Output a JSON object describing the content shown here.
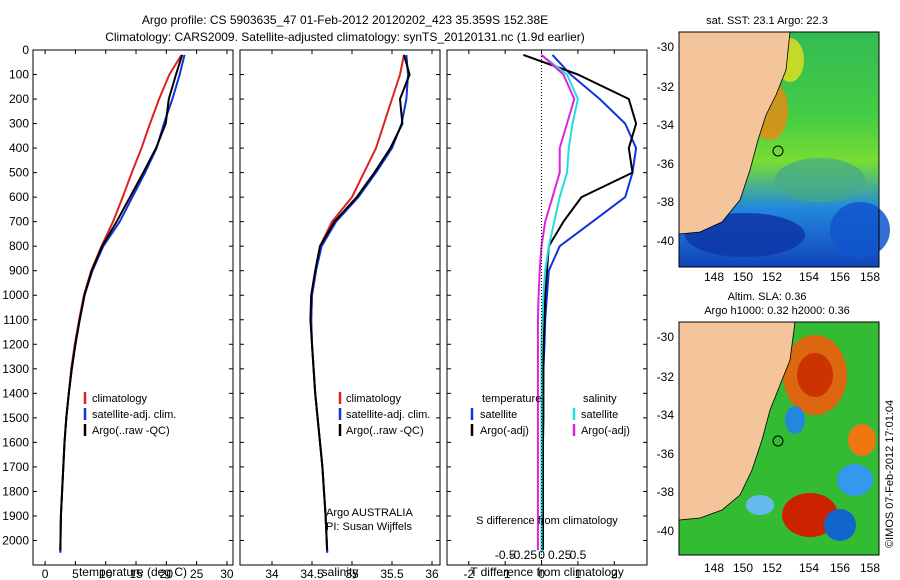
{
  "header": {
    "title_line1": "Argo profile: CS 5903635_47 01-Feb-2012 20120202_423 35.359S 152.38E",
    "title_line2": "Climatology: CARS2009. Satellite-adjusted climatology: synTS_20120131.nc (1.9d earlier)"
  },
  "panels": {
    "temperature": {
      "xlabel": "temperature (deg C)",
      "legend": [
        "climatology",
        "satellite-adj. clim.",
        "Argo(..raw -QC)"
      ]
    },
    "salinity": {
      "xlabel": "salinity",
      "legend": [
        "climatology",
        "satellite-adj. clim.",
        "Argo(..raw -QC)"
      ],
      "credit_line1": "Argo AUSTRALIA",
      "credit_line2": "PI: Susan Wijffels"
    },
    "difference": {
      "xlabel": "T difference from climatology",
      "top_xlabel": "S difference from climatology",
      "legend_temp_title": "temperature",
      "legend_temp": [
        "satellite",
        "Argo(-adj)"
      ],
      "legend_sal_title": "salinity",
      "legend_sal": [
        "satellite",
        "Argo(-adj)"
      ]
    }
  },
  "maps": {
    "sst_title": "sat. SST: 23.1  Argo: 22.3",
    "sla_title_line1": "Altim. SLA: 0.36",
    "sla_title_line2": "Argo h1000: 0.32  h2000: 0.36",
    "lat_ticks": [
      "-30",
      "-32",
      "-34",
      "-36",
      "-38",
      "-40"
    ],
    "lon_ticks": [
      "148",
      "150",
      "152",
      "154",
      "156",
      "158"
    ]
  },
  "footer": {
    "imos_stamp": "©IMOS 07-Feb-2012 17:01:04"
  },
  "colors": {
    "climatology": "#dd2222",
    "satellite": "#1133dd",
    "argo": "#000000",
    "sal_satellite": "#22dddd",
    "sal_argo": "#dd22dd",
    "land": "#f4c49a"
  },
  "chart_data": [
    {
      "type": "line",
      "title": "",
      "xlabel": "temperature (deg C)",
      "ylabel": "",
      "xlim": [
        -2,
        31
      ],
      "ylim": [
        2100,
        0
      ],
      "xticks": [
        0,
        5,
        10,
        15,
        20,
        25,
        30
      ],
      "yticks": [
        0,
        100,
        200,
        300,
        400,
        500,
        600,
        700,
        800,
        900,
        1000,
        1100,
        1200,
        1300,
        1400,
        1500,
        1600,
        1700,
        1800,
        1900,
        2000
      ],
      "series": [
        {
          "name": "climatology",
          "x": [
            22.5,
            20.5,
            18.8,
            17.3,
            15.9,
            14.3,
            12.8,
            11.2,
            9.3,
            7.6,
            6.4,
            5.6,
            4.9,
            4.3,
            3.9,
            3.5,
            3.2,
            3.0,
            2.8,
            2.6,
            2.5
          ],
          "y": [
            20,
            100,
            200,
            300,
            400,
            500,
            600,
            700,
            800,
            900,
            1000,
            1100,
            1200,
            1300,
            1400,
            1500,
            1600,
            1700,
            1800,
            1900,
            2050
          ]
        },
        {
          "name": "satellite-adj. clim.",
          "x": [
            23.0,
            22.2,
            21.0,
            19.6,
            18.4,
            16.5,
            14.4,
            12.3,
            9.6,
            7.8,
            6.5,
            5.7,
            5.0,
            4.4,
            3.9,
            3.5,
            3.2,
            3.0,
            2.8,
            2.6,
            2.5
          ],
          "y": [
            20,
            100,
            200,
            300,
            400,
            500,
            600,
            700,
            800,
            900,
            1000,
            1100,
            1200,
            1300,
            1400,
            1500,
            1600,
            1700,
            1800,
            1900,
            2050
          ]
        },
        {
          "name": "Argo(..raw -QC)",
          "x": [
            22.6,
            21.6,
            20.4,
            19.9,
            18.3,
            16.2,
            14.0,
            11.8,
            9.4,
            7.7,
            6.5,
            5.7,
            5.0,
            4.4,
            3.9,
            3.5,
            3.2,
            3.0,
            2.8,
            2.6,
            2.5
          ],
          "y": [
            20,
            100,
            200,
            300,
            400,
            500,
            600,
            700,
            800,
            900,
            1000,
            1100,
            1200,
            1300,
            1400,
            1500,
            1600,
            1700,
            1800,
            1900,
            2040
          ]
        }
      ]
    },
    {
      "type": "line",
      "title": "",
      "xlabel": "salinity",
      "ylabel": "",
      "xlim": [
        33.6,
        36.1
      ],
      "ylim": [
        2100,
        0
      ],
      "xticks": [
        34,
        34.5,
        35,
        35.5,
        36
      ],
      "series": [
        {
          "name": "climatology",
          "x": [
            35.65,
            35.6,
            35.5,
            35.4,
            35.3,
            35.15,
            35.0,
            34.75,
            34.6,
            34.55,
            34.5,
            34.49,
            34.5,
            34.52,
            34.54,
            34.57,
            34.6,
            34.63,
            34.65,
            34.67,
            34.69
          ],
          "y": [
            20,
            100,
            200,
            300,
            400,
            500,
            600,
            700,
            800,
            900,
            1000,
            1100,
            1200,
            1300,
            1400,
            1500,
            1600,
            1700,
            1800,
            1900,
            2050
          ]
        },
        {
          "name": "satellite-adj. clim.",
          "x": [
            35.68,
            35.7,
            35.68,
            35.62,
            35.5,
            35.3,
            35.08,
            34.8,
            34.62,
            34.55,
            34.5,
            34.49,
            34.5,
            34.52,
            34.54,
            34.57,
            34.6,
            34.63,
            34.65,
            34.67,
            34.69
          ],
          "y": [
            20,
            100,
            200,
            300,
            400,
            500,
            600,
            700,
            800,
            900,
            1000,
            1100,
            1200,
            1300,
            1400,
            1500,
            1600,
            1700,
            1800,
            1900,
            2050
          ]
        },
        {
          "name": "Argo(..raw -QC)",
          "x": [
            35.65,
            35.72,
            35.6,
            35.63,
            35.48,
            35.28,
            35.06,
            34.78,
            34.6,
            34.54,
            34.49,
            34.48,
            34.5,
            34.52,
            34.54,
            34.57,
            34.6,
            34.63,
            34.65,
            34.67,
            34.69
          ],
          "y": [
            20,
            100,
            200,
            300,
            400,
            500,
            600,
            700,
            800,
            900,
            1000,
            1100,
            1200,
            1300,
            1400,
            1500,
            1600,
            1700,
            1800,
            1900,
            2040
          ]
        }
      ]
    },
    {
      "type": "line",
      "title": "",
      "xlabel": "T difference from climatology",
      "ylabel": "",
      "xlim": [
        -2.6,
        2.9
      ],
      "ylim": [
        2100,
        0
      ],
      "xticks": [
        -2,
        -1,
        0,
        1,
        2
      ],
      "top_xlabel": "S difference from climatology",
      "top_xticks": [
        "-0.5",
        "-0.25",
        "0",
        "0.25",
        "0.5"
      ],
      "series": [
        {
          "name": "temperature satellite",
          "x": [
            0.3,
            0.8,
            1.6,
            2.3,
            2.6,
            2.5,
            2.3,
            1.4,
            0.5,
            0.2,
            0.15,
            0.1,
            0.08,
            0.05,
            0.04,
            0.03,
            0.02,
            0.01,
            0.0,
            0.0
          ],
          "y": [
            20,
            100,
            200,
            300,
            400,
            500,
            600,
            700,
            800,
            900,
            1000,
            1100,
            1200,
            1300,
            1400,
            1500,
            1600,
            1700,
            1800,
            2050
          ]
        },
        {
          "name": "temperature Argo(-adj)",
          "x": [
            -0.5,
            1.0,
            2.4,
            2.6,
            2.4,
            2.5,
            1.1,
            0.6,
            0.2,
            0.15,
            0.1,
            0.08,
            0.06,
            0.05,
            0.05,
            0.05,
            0.04,
            0.04,
            0.04,
            0.04
          ],
          "y": [
            20,
            100,
            200,
            300,
            400,
            500,
            600,
            700,
            800,
            900,
            1000,
            1100,
            1200,
            1300,
            1400,
            1500,
            1600,
            1700,
            1800,
            2040
          ]
        },
        {
          "name": "salinity satellite",
          "x": [
            0.0,
            0.7,
            1.0,
            0.85,
            0.75,
            0.7,
            0.5,
            0.35,
            0.2,
            0.1,
            0.05,
            0.02,
            0.0,
            0.0,
            0.0,
            0.0,
            0.0,
            0.0,
            0.0,
            0.0
          ],
          "y": [
            20,
            100,
            200,
            300,
            400,
            500,
            600,
            700,
            800,
            900,
            1000,
            1100,
            1200,
            1300,
            1400,
            1500,
            1600,
            1700,
            1800,
            2050
          ]
        },
        {
          "name": "salinity Argo(-adj)",
          "x": [
            0.0,
            0.6,
            0.9,
            0.7,
            0.5,
            0.5,
            0.3,
            0.1,
            0.0,
            -0.05,
            -0.08,
            -0.1,
            -0.1,
            -0.1,
            -0.1,
            -0.1,
            -0.1,
            -0.1,
            -0.1,
            -0.1
          ],
          "y": [
            20,
            100,
            200,
            300,
            400,
            500,
            600,
            700,
            800,
            900,
            1000,
            1100,
            1200,
            1300,
            1400,
            1500,
            1600,
            1700,
            1800,
            2040
          ]
        }
      ]
    }
  ]
}
